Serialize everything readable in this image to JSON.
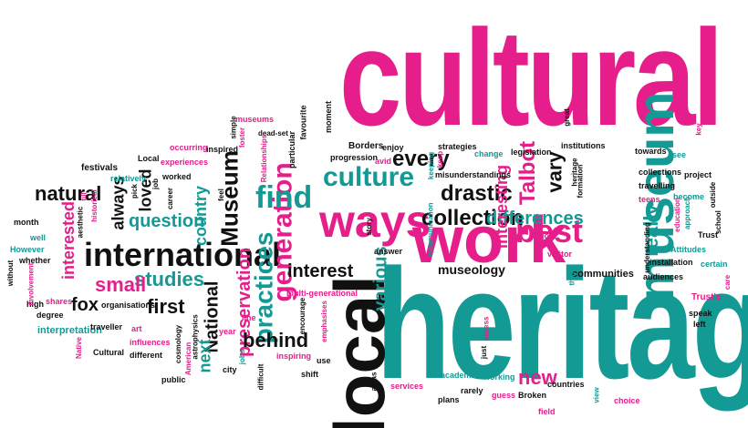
{
  "colors": {
    "magenta": "#e61e8c",
    "teal": "#139a94",
    "black": "#111111"
  },
  "words": {
    "cultural": "cultural",
    "heritage": "heritage",
    "local": "local",
    "work": "work",
    "ways": "ways",
    "museum": "museum",
    "international": "international",
    "generation": "generation",
    "find": "find",
    "practices": "practices",
    "culture": "culture",
    "best": "best",
    "collection": "collection",
    "drastic": "drastic",
    "differences": "differences",
    "every": "every",
    "interest": "interest",
    "various": "various",
    "new": "new",
    "Museum": "Museum",
    "preservation": "preservation",
    "behind": "behind",
    "National": "National",
    "next": "next",
    "studies": "studies",
    "first": "first",
    "small": "small",
    "fox": "fox",
    "natural": "natural",
    "question": "question",
    "country": "country",
    "loved": "loved",
    "always": "always",
    "interested": "interested",
    "interpretation": "interpretation",
    "Talbot": "Talbot",
    "vary": "vary",
    "really": "really",
    "interesting": "interesting",
    "multi_generational": "multi-generational",
    "museology": "museology",
    "communities": "communities",
    "festivals": "festivals",
    "Local": "Local",
    "worked": "worked",
    "experiences": "experiences",
    "occurring": "occurring",
    "inspired": "inspired",
    "foster": "foster",
    "museums": "museums",
    "simple": "simple",
    "dead_set": "dead-set",
    "Relationships": "Relationships",
    "particular": "particular",
    "favourite": "favourite",
    "moment": "moment",
    "Borders": "Borders",
    "progression": "progression",
    "enjoy": "enjoy",
    "avid": "avid",
    "strategies": "strategies",
    "keeping": "keeping",
    "keep": "keep",
    "change": "change",
    "legislation": "legislation",
    "institutions": "institutions",
    "misunderstandings": "misunderstandings",
    "great": "great",
    "heritage_small": "heritage",
    "formation": "formation",
    "towards": "towards",
    "see": "see",
    "collections": "collections",
    "project": "project",
    "travelling": "travelling",
    "teens": "teens",
    "become": "become",
    "outside": "outside",
    "education": "education",
    "school": "school",
    "approach": "approach",
    "understanding": "understanding",
    "Trust": "Trust",
    "key": "key",
    "Attitudes": "Attitudes",
    "installation": "installation",
    "certain": "certain",
    "audiences": "audiences",
    "care": "care",
    "Trusts": "Trust's",
    "speak": "speak",
    "left": "left",
    "choice": "choice",
    "view": "view",
    "field": "field",
    "countries": "countries",
    "Broken": "Broken",
    "guess": "guess",
    "rarely": "rarely",
    "plans": "plans",
    "working": "working",
    "academia": "academia",
    "just": "just",
    "services": "services",
    "areas": "areas",
    "access": "access",
    "visitor": "visitor",
    "think": "think",
    "answer": "answer",
    "much": "much",
    "communication": "communication",
    "story": "story",
    "encourage": "encourage",
    "emphasises": "emphasises",
    "use": "use",
    "shift": "shift",
    "inspiring": "inspiring",
    "difficult": "difficult",
    "city": "city",
    "jobs": "jobs",
    "year": "year",
    "line": "line",
    "cosmology": "cosmology",
    "astrophysics": "astrophysics",
    "American": "American",
    "influences": "influences",
    "art": "art",
    "organisations": "organisations",
    "traveller": "traveller",
    "different": "different",
    "Cultural": "Cultural",
    "public": "public",
    "Native": "Native",
    "shares": "shares",
    "degree": "degree",
    "high": "high",
    "whether": "whether",
    "involvement": "involvement",
    "without": "without",
    "However": "However",
    "well": "well",
    "month": "month",
    "aesthetic": "aesthetic",
    "till": "till",
    "historical": "historical",
    "relatively": "relatively",
    "job": "job",
    "career": "career",
    "pick": "pick",
    "feel": "feel"
  }
}
